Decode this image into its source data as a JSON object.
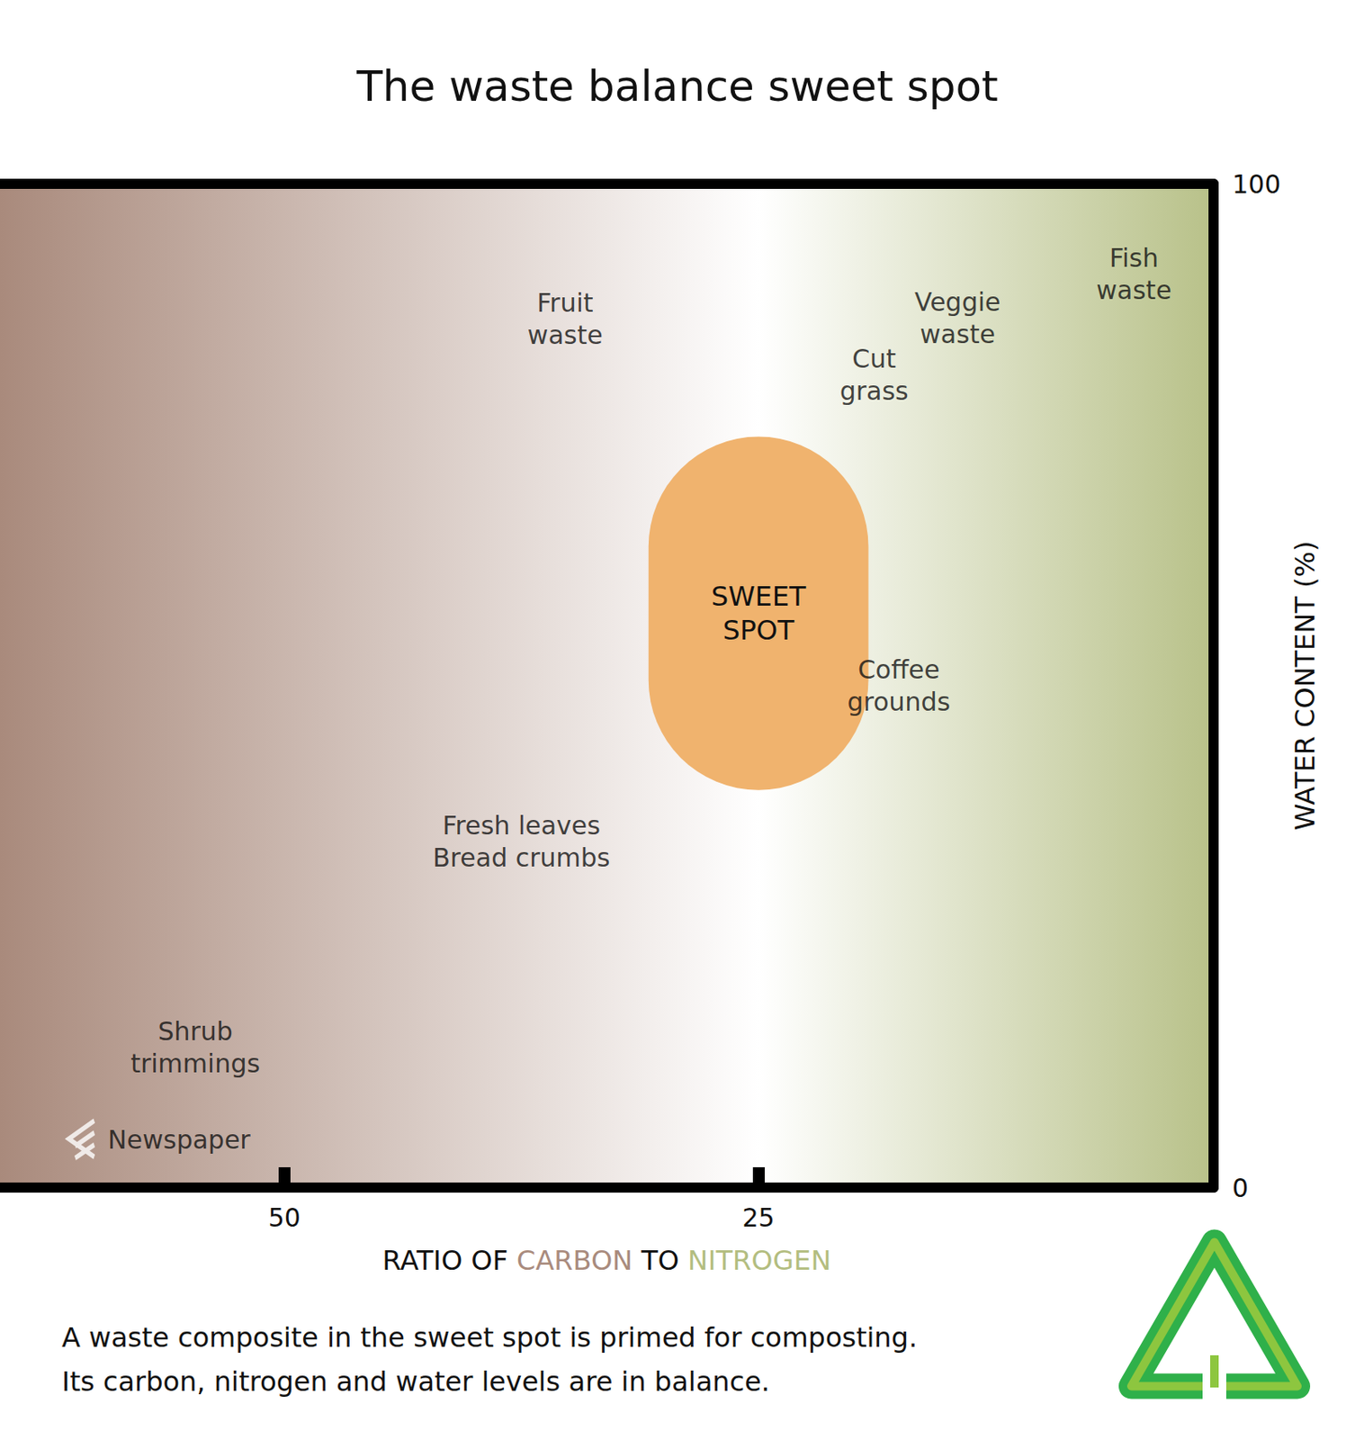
{
  "chart_data": {
    "type": "scatter",
    "title": "The waste balance sweet spot",
    "subtitle": [
      "A waste composite in the sweet spot is primed for composting.",
      "Its carbon, nitrogen and water levels are in balance."
    ],
    "xlabel": [
      {
        "text": "RATIO OF ",
        "color": "#111111"
      },
      {
        "text": "CARBON",
        "color": "#a98b7d"
      },
      {
        "text": " TO ",
        "color": "#111111"
      },
      {
        "text": "NITROGEN",
        "color": "#b3bd80"
      }
    ],
    "ylabel": "WATER CONTENT (%)",
    "xlim": [
      65,
      1
    ],
    "xticks": [
      50,
      25
    ],
    "ylim": [
      0,
      100
    ],
    "yticks": [
      0,
      100
    ],
    "background": {
      "x": [
        65,
        25,
        1
      ],
      "colors": [
        "#a98a7c",
        "#ffffff",
        "#b8c189"
      ]
    },
    "regions": [
      {
        "label": [
          "SWEET",
          "SPOT"
        ],
        "x": [
          30.8,
          19.2
        ],
        "y": [
          39.6,
          74.8
        ],
        "color": "#f0b36e"
      }
    ],
    "series": [
      {
        "type": "scatter",
        "marker": "none",
        "color": "#111111",
        "points": [
          {
            "label": [
              "Fruit",
              "waste"
            ],
            "x": 35.2,
            "y": 86.5
          },
          {
            "label": [
              "Veggie",
              "waste"
            ],
            "x": 14.5,
            "y": 86.6
          },
          {
            "label": [
              "Fish",
              "waste"
            ],
            "x": 5.2,
            "y": 91
          },
          {
            "label": [
              "Cut",
              "grass"
            ],
            "x": 18.9,
            "y": 81
          },
          {
            "label": [
              "Coffee",
              "grounds"
            ],
            "x": 17.6,
            "y": 50
          },
          {
            "label": [
              "Fresh leaves",
              "Bread crumbs"
            ],
            "x": 37.5,
            "y": 34.5
          },
          {
            "label": [
              "Shrub",
              "trimmings"
            ],
            "x": 54.7,
            "y": 14
          }
        ]
      },
      {
        "type": "scatter",
        "marker": "arrow",
        "color": "#ffffff",
        "points": [
          {
            "label": [
              "Newspaper"
            ],
            "x": 60.7,
            "y": 4.8
          }
        ]
      }
    ]
  }
}
